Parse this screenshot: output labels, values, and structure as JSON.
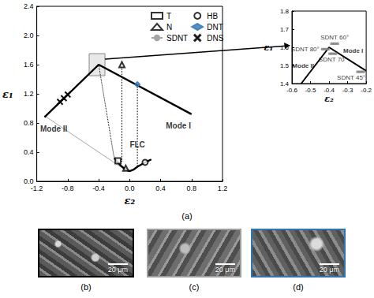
{
  "chart_data": [
    {
      "type": "scatter",
      "xlabel": "ε₂",
      "ylabel": "ε₁",
      "xlim": [
        -1.2,
        1.2
      ],
      "ylim": [
        0,
        2.4
      ],
      "xticks": [
        -1.2,
        -0.8,
        -0.4,
        {
          "value": 0,
          "label": "0.0"
        },
        0.4,
        0.8,
        1.2
      ],
      "yticks": [
        {
          "value": 0,
          "label": "0.0"
        },
        0.4,
        0.8,
        1.2,
        1.6,
        {
          "value": 2,
          "label": "2.0"
        },
        2.4
      ],
      "grid": false,
      "legend": "upper right",
      "series": [
        {
          "name": "T",
          "type": "scatter",
          "marker": "square",
          "color": "#000000",
          "x": [
            -0.15
          ],
          "values": [
            0.28
          ]
        },
        {
          "name": "N",
          "type": "scatter",
          "marker": "triangle",
          "color": "#000000",
          "x": [
            -0.1,
            -0.05
          ],
          "values": [
            1.6,
            0.18
          ]
        },
        {
          "name": "SDNT",
          "type": "line",
          "marker": "none",
          "color": "#a6a6a6",
          "x": [
            -1.1,
            -0.05
          ],
          "values": [
            0.9,
            0.15
          ]
        },
        {
          "name": "HB",
          "type": "scatter",
          "marker": "circle",
          "color": "#000000",
          "x": [
            0.2
          ],
          "values": [
            0.26
          ]
        },
        {
          "name": "DNT",
          "type": "scatter",
          "marker": "diamond",
          "color": "#2e75b6",
          "x": [
            0.1
          ],
          "values": [
            1.33
          ]
        },
        {
          "name": "DNS",
          "type": "scatter",
          "marker": "x",
          "color": "#000000",
          "x": [
            -0.8,
            -0.85,
            -0.9
          ],
          "values": [
            1.19,
            1.14,
            1.09
          ]
        },
        {
          "type": "line",
          "marker": "none",
          "color": "#000000",
          "x": [
            -1.1,
            -0.4,
            0.8
          ],
          "values": [
            0.88,
            1.6,
            0.92
          ]
        },
        {
          "type": "line",
          "marker": "none",
          "color": "#000000",
          "x": [
            -0.2,
            -0.12,
            -0.05,
            0,
            0.05,
            0.1,
            0.2,
            0.28
          ],
          "values": [
            0.32,
            0.22,
            0.16,
            0.14,
            0.16,
            0.2,
            0.26,
            0.3
          ]
        },
        {
          "type": "line",
          "marker": "none",
          "line_style": "dotted",
          "color": "#000000",
          "x": [
            -0.1,
            -0.1
          ],
          "values": [
            1.6,
            0.27
          ]
        },
        {
          "type": "line",
          "marker": "none",
          "line_style": "dotted",
          "color": "#000000",
          "x": [
            0.1,
            0.1
          ],
          "values": [
            1.33,
            0.2
          ]
        },
        {
          "type": "line",
          "marker": "none",
          "line_style": "dotted",
          "color": "#000000",
          "x": [
            -0.4,
            -0.2
          ],
          "values": [
            1.6,
            0.32
          ]
        }
      ],
      "annotations": [
        {
          "text": "Mode II",
          "x": -0.98,
          "y": 0.72
        },
        {
          "text": "Mode I",
          "x": 0.63,
          "y": 0.76
        },
        {
          "text": "FLC",
          "x": 0.1,
          "y": 0.5
        }
      ]
    },
    {
      "type": "scatter",
      "xlabel": "ε₂",
      "ylabel": "ε₁",
      "xlim": [
        -0.6,
        -0.2
      ],
      "ylim": [
        1.4,
        1.8
      ],
      "xticks": [
        -0.6,
        -0.5,
        -0.4,
        -0.3,
        -0.2
      ],
      "yticks": [
        1.4,
        1.5,
        1.6,
        1.7,
        1.8
      ],
      "grid": false,
      "series": [
        {
          "type": "line",
          "marker": "none",
          "color": "#000000",
          "x": [
            -0.55,
            -0.4,
            -0.2
          ],
          "values": [
            1.4,
            1.6,
            1.47
          ]
        },
        {
          "type": "scatter",
          "marker": "dash",
          "color": "#7f7f7f",
          "x": [
            -0.42,
            -0.37,
            -0.38,
            -0.23
          ],
          "values": [
            1.59,
            1.62,
            1.565,
            1.465
          ],
          "labels": [
            "SDNT 80°",
            "SDNT 60°",
            "SDNT 70°",
            "SDNT 45°"
          ]
        }
      ],
      "annotations": [
        {
          "text": "Mode II",
          "x": -0.54,
          "y": 1.5
        },
        {
          "text": "Mode I",
          "x": -0.27,
          "y": 1.58
        }
      ]
    }
  ],
  "figure": {
    "panel_labels": [
      "(a)",
      "(b)",
      "(c)",
      "(d)"
    ],
    "images": [
      {
        "label": "(b)",
        "scale_bar": "20 μm",
        "border_color": "#000000"
      },
      {
        "label": "(c)",
        "scale_bar": "20 μm",
        "border_color": "#9e9e9e"
      },
      {
        "label": "(d)",
        "scale_bar": "20 μm",
        "border_color": "#2e75b6"
      }
    ]
  }
}
